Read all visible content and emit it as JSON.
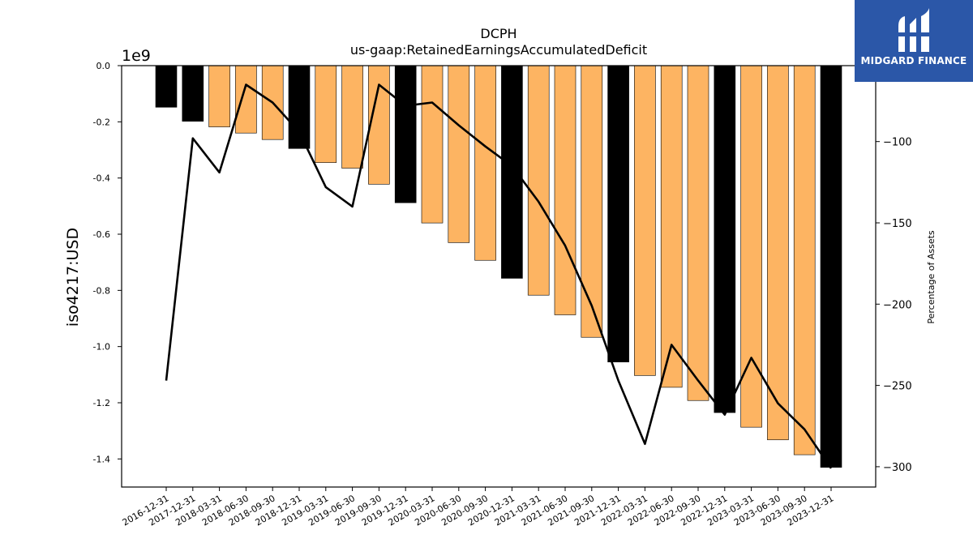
{
  "chart_data": {
    "type": "bar",
    "title": "DCPH",
    "subtitle": "us-gaap:RetainedEarningsAccumulatedDeficit",
    "ylabel": "iso4217:USD",
    "y_multiplier": "1e9",
    "y2label": "Percentage of Assets",
    "ylim": [
      -1.5,
      0.0
    ],
    "y2lim": [
      -312.5,
      -53.3
    ],
    "yticks": [
      "0.0",
      "-0.2",
      "-0.4",
      "-0.6",
      "-0.8",
      "-1.0",
      "-1.2",
      "-1.4"
    ],
    "y2ticks": [
      "-100",
      "-150",
      "-200",
      "-250",
      "-300"
    ],
    "categories": [
      "2016-12-31",
      "2017-12-31",
      "2018-03-31",
      "2018-06-30",
      "2018-09-30",
      "2018-12-31",
      "2019-03-31",
      "2019-06-30",
      "2019-09-30",
      "2019-12-31",
      "2020-03-31",
      "2020-06-30",
      "2020-09-30",
      "2020-12-31",
      "2021-03-31",
      "2021-06-30",
      "2021-09-30",
      "2021-12-31",
      "2022-03-31",
      "2022-06-30",
      "2022-09-30",
      "2022-12-31",
      "2023-03-31",
      "2023-06-30",
      "2023-09-30",
      "2023-12-31"
    ],
    "annual": [
      true,
      true,
      false,
      false,
      false,
      true,
      false,
      false,
      false,
      true,
      false,
      false,
      false,
      true,
      false,
      false,
      false,
      true,
      false,
      false,
      false,
      true,
      false,
      false,
      false,
      true
    ],
    "colors": {
      "annual": "#000000",
      "quarterly": "#fdb462",
      "line": "#000000"
    },
    "series": [
      {
        "type": "bar",
        "values": [
          -0.148,
          -0.198,
          -0.218,
          -0.24,
          -0.263,
          -0.295,
          -0.345,
          -0.365,
          -0.422,
          -0.488,
          -0.56,
          -0.63,
          -0.693,
          -0.757,
          -0.817,
          -0.887,
          -0.967,
          -1.055,
          -1.103,
          -1.145,
          -1.192,
          -1.235,
          -1.287,
          -1.332,
          -1.385,
          -1.43
        ]
      },
      {
        "type": "line",
        "axis": "right",
        "values": [
          -247,
          -98,
          -119,
          -65,
          -76,
          -94,
          -128,
          -140,
          -65,
          -78,
          -76,
          -90,
          -103,
          -115,
          -137,
          -164,
          -201,
          -247,
          -286,
          -225,
          -247,
          -268,
          -233,
          -261,
          -277,
          -301
        ]
      }
    ]
  },
  "logo": {
    "text": "MIDGARD FINANCE"
  }
}
